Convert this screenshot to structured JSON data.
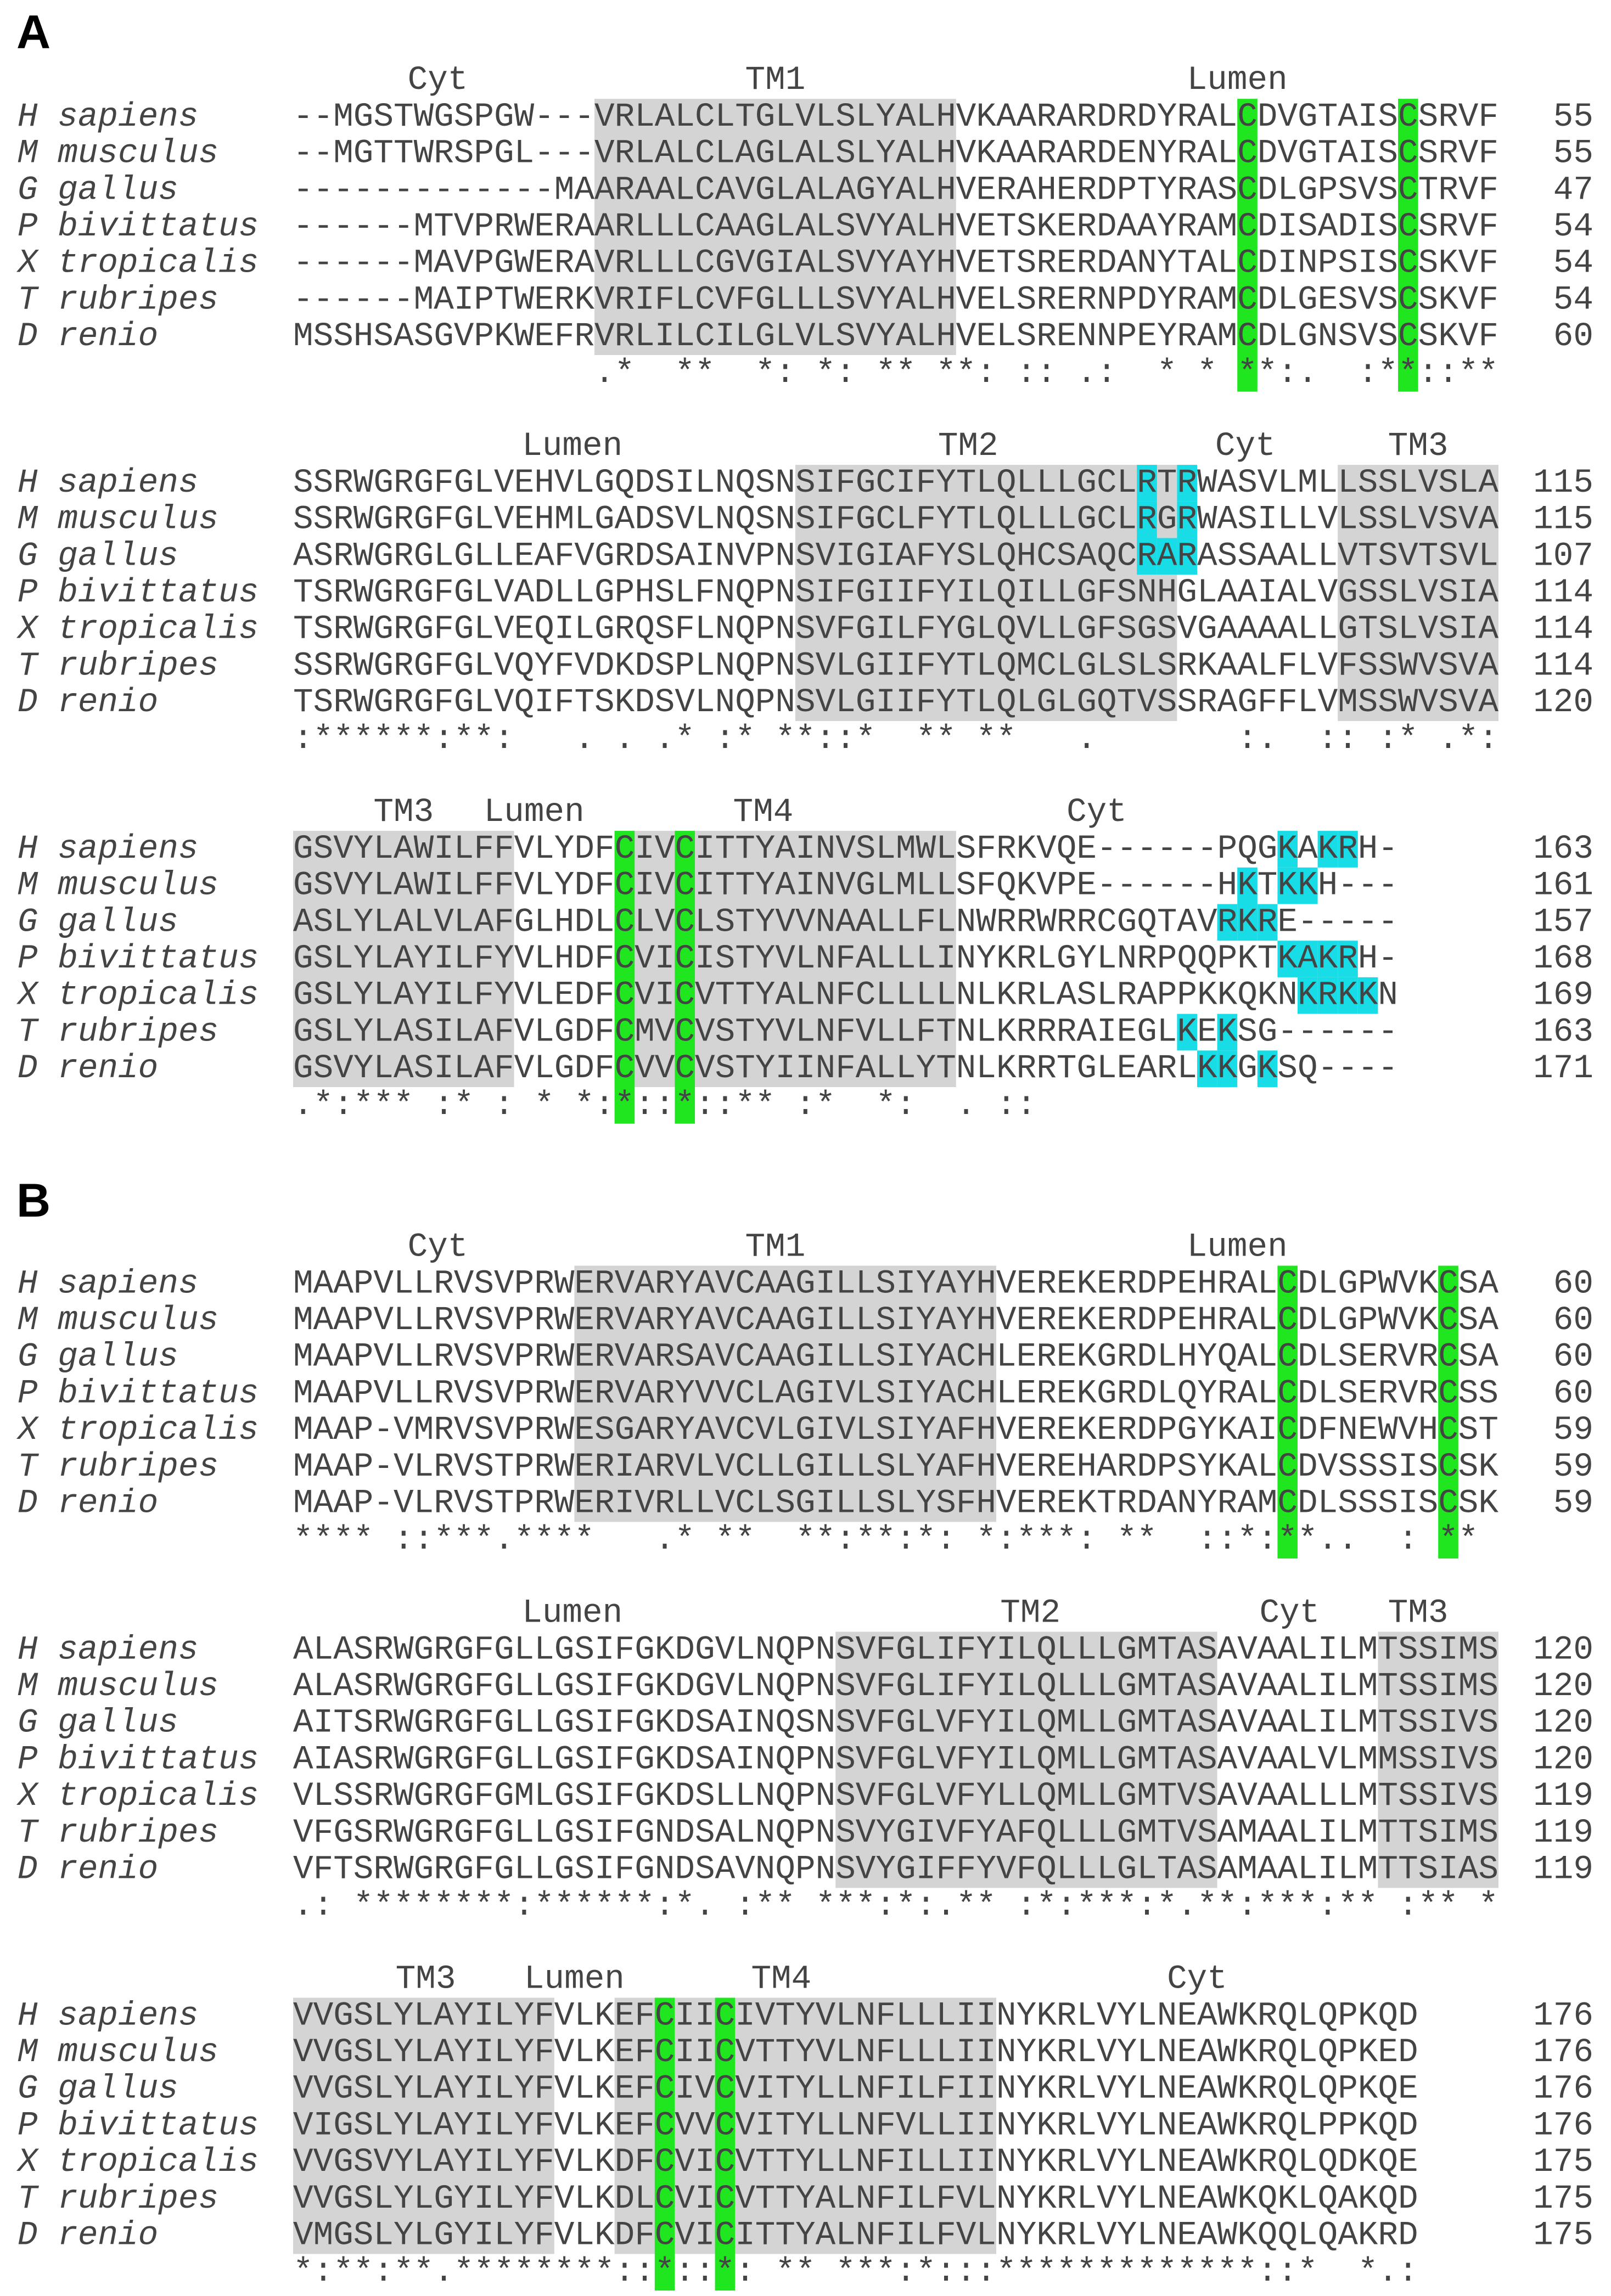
{
  "species": [
    "H sapiens",
    "M musculus",
    "G gallus",
    "P bivittatus",
    "X tropicalis",
    "T rubripes",
    "D renio"
  ],
  "panels": [
    {
      "label": "A",
      "blocks": [
        {
          "headers": [
            "Cyt",
            "TM1",
            "Lumen"
          ],
          "rows": [
            "--MGSTWGSPGW---VRLALCLTGLVLSLYALHVKAARARDRDYRALCDVGTAISCSRVF",
            "--MGTTWRSPGL---VRLALCLAGLALSLYALHVKAARARDENYRALCDVGTAISCSRVF",
            "-------------MAARAALCAVGLALAGYALHVERAHERDPTYRASCDLGPSVSCTRVF",
            "------MTVPRWERAARLLLCAAGLALSVYALHVETSKERDAAYRAMCDISADISCSRVF",
            "------MAVPGWERAVRLLLCGVGIALSVYAYHVETSRERDANYTALCDINPSISCSKVF",
            "------MAIPTWERKVRIFLCVFGLLLSVYALHVELSRERNPDYRAMCDLGESVSCSKVF",
            "MSSHSASGVPKWEFRVRLILCILGLVLSVYALHVELSRENNPEYRAMCDLGNSVSCSKVF"
          ],
          "ends": [
            55,
            55,
            47,
            54,
            54,
            54,
            60
          ],
          "consensus": "               .*  **  *: *: ** **: :: .:  * * **:.  :**::**"
        },
        {
          "headers": [
            "Lumen",
            "TM2",
            "Cyt",
            "TM3"
          ],
          "rows": [
            "SSRWGRGFGLVEHVLGQDSILNQSNSIFGCIFYTLQLLLGCLRTRWASVLMLLSSLVSLA",
            "SSRWGRGFGLVEHMLGADSVLNQSNSIFGCLFYTLQLLLGCLRGRWASILLVLSSLVSVA",
            "ASRWGRGLGLLEAFVGRDSAINVPNSVIGIAFYSLQHCSAQCRARASSAALLVTSVTSVL",
            "TSRWGRGFGLVADLLGPHSLFNQPNSIFGIIFYILQILLGFSNHGLAAIALVGSSLVSIA",
            "TSRWGRGFGLVEQILGRQSFLNQPNSVFGILFYGLQVLLGFSGSVGAAAALLGTSLVSIA",
            "SSRWGRGFGLVQYFVDKDSPLNQPNSVLGIIFYTLQMCLGLSLSRKAALFLVFSSWVSVA",
            "TSRWGRGFGLVQIFTSKDSVLNQPNSVLGIIFYTLQLGLGQTVSSRAGFFLVMSSWVSVA"
          ],
          "ends": [
            115,
            115,
            107,
            114,
            114,
            114,
            120
          ],
          "consensus": ":******:**:   . . .* :* **::*  ** **   .       :.  :: :* .*:"
        },
        {
          "headers": [
            "TM3",
            "Lumen",
            "TM4",
            "Cyt"
          ],
          "rows": [
            "GSVYLAWILFFVLYDFCIVCITTYAINVSLMWLSFRKVQE------PQGKAKRH-",
            "GSVYLAWILFFVLYDFCIVCITTYAINVGLMLLSFQKVPE------HKTKKH---",
            "ASLYLALVLAFGLHDLCLVCLSTYVVNAALLFLNWRRWRRCGQTAVRKRE-----",
            "GSLYLAYILFYVLHDFCVICISTYVLNFALLLINYKRLGYLNRPQQPKTKAKRH-",
            "GSLYLAYILFYVLEDFCVICVTTYALNFCLLLLNLKRLASLRAPPKKQKNKRKKN",
            "GSLYLASILAFVLGDFCMVCVSTYVLNFVLLFTNLKRRRAIEGLKEKSG------",
            "GSVYLASILAFVLGDFCVVCVSTYIINFALLYTNLKRRTGLEARLKKGKSQ----"
          ],
          "ends": [
            163,
            161,
            157,
            168,
            169,
            163,
            171
          ],
          "consensus": ".*:*** :* : * *:*::*::** :*  *:  . ::"
        }
      ]
    },
    {
      "label": "B",
      "blocks": [
        {
          "headers": [
            "Cyt",
            "TM1",
            "Lumen"
          ],
          "rows": [
            "MAAPVLLRVSVPRWERVARYAVCAAGILLSIYAYHVEREKERDPEHRALCDLGPWVKCSA",
            "MAAPVLLRVSVPRWERVARYAVCAAGILLSIYAYHVEREKERDPEHRALCDLGPWVKCSA",
            "MAAPVLLRVSVPRWERVARSAVCAAGILLSIYACHLEREKGRDLHYQALCDLSERVRCSA",
            "MAAPVLLRVSVPRWERVARYVVCLAGIVLSIYACHLEREKGRDLQYRALCDLSERVRCSS",
            "MAAP-VMRVSVPRWESGARYAVCVLGIVLSIYAFHVEREKERDPGYKAICDFNEWVHCST",
            "MAAP-VLRVSTPRWERIARVLVCLLGILLSLYAFHVEREHARDPSYKALCDVSSSISCSK",
            "MAAP-VLRVSTPRWERIVRLLVCLSGILLSLYSFHVEREKTRDANYRAMCDLSSSISCSK"
          ],
          "ends": [
            60,
            60,
            60,
            60,
            59,
            59,
            59
          ],
          "consensus": "**** ::***.****   .* **  **:**:*: *:***: **  ::*:**..  : **"
        },
        {
          "headers": [
            "Lumen",
            "TM2",
            "Cyt",
            "TM3"
          ],
          "rows": [
            "ALASRWGRGFGLLGSIFGKDGVLNQPNSVFGLIFYILQLLLGMTASAVAALILMTSSIMS",
            "ALASRWGRGFGLLGSIFGKDGVLNQPNSVFGLIFYILQLLLGMTASAVAALILMTSSIMS",
            "AITSRWGRGFGLLGSIFGKDSAINQSNSVFGLVFYILQMLLGMTASAVAALILMTSSIVS",
            "AIASRWGRGFGLLGSIFGKDSAINQPNSVFGLVFYILQMLLGMTASAVAALVLMMSSIVS",
            "VLSSRWGRGFGMLGSIFGKDSLLNQPNSVFGLVFYLLQMLLGMTVSAVAALLLMTSSIVS",
            "VFGSRWGRGFGLLGSIFGNDSALNQPNSVYGIVFYAFQLLLGMTVSAMAALILMTTSIMS",
            "VFTSRWGRGFGLLGSIFGNDSAVNQPNSVYGIFFYVFQLLLGLTASAMAALILMTTSIAS"
          ],
          "ends": [
            120,
            120,
            120,
            120,
            119,
            119,
            119
          ],
          "consensus": ".: ********:******:*. :** ***:*:.** :*:***:*.**:***:** :** *"
        },
        {
          "headers": [
            "TM3",
            "Lumen",
            "TM4",
            "Cyt"
          ],
          "rows": [
            "VVGSLYLAYILYFVLKEFCIICIVTYVLNFLLLIINYKRLVYLNEAWKRQLQPKQD",
            "VVGSLYLAYILYFVLKEFCIICVTTYVLNFLLLIINYKRLVYLNEAWKRQLQPKED",
            "VVGSLYLAYILYFVLKEFCIVCVITYLLNFILFIINYKRLVYLNEAWKRQLQPKQE",
            "VIGSLYLAYILYFVLKEFCVVCVITYLLNFVLLIINYKRLVYLNEAWKRQLPPKQD",
            "VVGSVYLAYILYFVLKDFCVICVTTYLLNFILLIINYKRLVYLNEAWKRQLQDKQE",
            "VVGSLYLGYILYFVLKDLCVICVTTYALNFILFVLNYKRLVYLNEAWKQKLQAKQD",
            "VMGSLYLGYILYFVLKDFCVICITTYALNFILFVLNYKRLVYLNEAWKQQLQAKRD"
          ],
          "ends": [
            176,
            176,
            176,
            176,
            175,
            175,
            175
          ],
          "consensus": "*:**:**.********::*::*: ** ***:*:::*************::*  *.:"
        }
      ]
    }
  ]
}
